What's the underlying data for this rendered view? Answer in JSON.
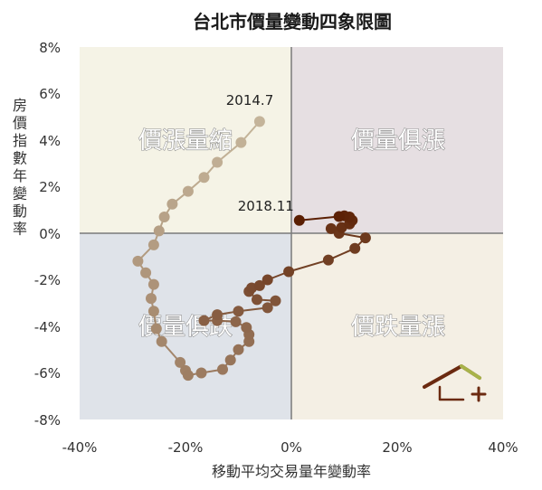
{
  "chart_data": {
    "type": "scatter",
    "title": "台北市價量變動四象限圖",
    "xlabel": "移動平均交易量年變動率",
    "ylabel": "房價指數年變動率",
    "xlim": [
      -40,
      40
    ],
    "ylim": [
      -8,
      8
    ],
    "x_ticks": [
      "-40%",
      "-20%",
      "0%",
      "20%",
      "40%"
    ],
    "y_ticks": [
      "8%",
      "6%",
      "4%",
      "2%",
      "0%",
      "-2%",
      "-4%",
      "-6%",
      "-8%"
    ],
    "grid": false,
    "quadrants": {
      "top_left": "價漲量縮",
      "top_right": "價量俱漲",
      "bottom_left": "價量俱跌",
      "bottom_right": "價跌量漲"
    },
    "quadrant_colors": {
      "top_left": "#f5f3e6",
      "top_right": "#e6dfe2",
      "bottom_left": "#dfe3e9",
      "bottom_right": "#f4efe4"
    },
    "color_start": "#c4b49a",
    "color_end": "#5a1e02",
    "annotations": [
      {
        "text": "2014.7",
        "x": -6.5,
        "y": 4.9
      },
      {
        "text": "2018.11",
        "x": 1.5,
        "y": 0.55
      }
    ],
    "points": [
      {
        "x": -6.0,
        "y": 4.8
      },
      {
        "x": -9.5,
        "y": 3.9
      },
      {
        "x": -14.0,
        "y": 3.05
      },
      {
        "x": -16.5,
        "y": 2.4
      },
      {
        "x": -19.5,
        "y": 1.8
      },
      {
        "x": -22.5,
        "y": 1.25
      },
      {
        "x": -24.0,
        "y": 0.7
      },
      {
        "x": -25.0,
        "y": 0.1
      },
      {
        "x": -26.0,
        "y": -0.5
      },
      {
        "x": -29.0,
        "y": -1.2
      },
      {
        "x": -27.5,
        "y": -1.7
      },
      {
        "x": -26.0,
        "y": -2.2
      },
      {
        "x": -26.5,
        "y": -2.8
      },
      {
        "x": -26.0,
        "y": -3.35
      },
      {
        "x": -25.5,
        "y": -4.1
      },
      {
        "x": -24.5,
        "y": -4.65
      },
      {
        "x": -21.0,
        "y": -5.55
      },
      {
        "x": -20.0,
        "y": -5.9
      },
      {
        "x": -19.5,
        "y": -6.1
      },
      {
        "x": -17.0,
        "y": -6.0
      },
      {
        "x": -13.0,
        "y": -5.85
      },
      {
        "x": -11.5,
        "y": -5.45
      },
      {
        "x": -10.0,
        "y": -5.0
      },
      {
        "x": -8.0,
        "y": -4.65
      },
      {
        "x": -8.0,
        "y": -4.35
      },
      {
        "x": -8.5,
        "y": -4.05
      },
      {
        "x": -10.5,
        "y": -3.8
      },
      {
        "x": -14.0,
        "y": -3.75
      },
      {
        "x": -16.5,
        "y": -3.75
      },
      {
        "x": -14.0,
        "y": -3.5
      },
      {
        "x": -10.0,
        "y": -3.35
      },
      {
        "x": -4.5,
        "y": -3.2
      },
      {
        "x": -3.0,
        "y": -2.9
      },
      {
        "x": -6.5,
        "y": -2.85
      },
      {
        "x": -8.0,
        "y": -2.5
      },
      {
        "x": -7.5,
        "y": -2.35
      },
      {
        "x": -6.0,
        "y": -2.25
      },
      {
        "x": -4.5,
        "y": -2.0
      },
      {
        "x": -0.5,
        "y": -1.65
      },
      {
        "x": 7.0,
        "y": -1.15
      },
      {
        "x": 12.0,
        "y": -0.65
      },
      {
        "x": 14.0,
        "y": -0.2
      },
      {
        "x": 9.0,
        "y": 0.0
      },
      {
        "x": 7.5,
        "y": 0.2
      },
      {
        "x": 9.5,
        "y": 0.25
      },
      {
        "x": 11.0,
        "y": 0.4
      },
      {
        "x": 11.5,
        "y": 0.55
      },
      {
        "x": 11.0,
        "y": 0.7
      },
      {
        "x": 10.0,
        "y": 0.75
      },
      {
        "x": 9.0,
        "y": 0.72
      },
      {
        "x": 1.5,
        "y": 0.55
      }
    ]
  }
}
